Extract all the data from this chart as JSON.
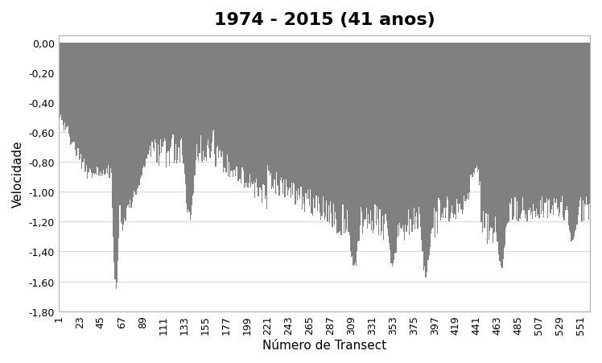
{
  "title": "1974 - 2015 (41 anos)",
  "xlabel": "Número de Transect",
  "ylabel": "Velocidade",
  "ylim": [
    -1.8,
    0.05
  ],
  "yticks": [
    0.0,
    -0.2,
    -0.4,
    -0.6,
    -0.8,
    -1.0,
    -1.2,
    -1.4,
    -1.6,
    -1.8
  ],
  "xtick_labels": [
    "1",
    "23",
    "45",
    "67",
    "89",
    "111",
    "133",
    "155",
    "177",
    "199",
    "221",
    "243",
    "265",
    "287",
    "309",
    "331",
    "353",
    "375",
    "397",
    "419",
    "441",
    "463",
    "485",
    "507",
    "529",
    "551"
  ],
  "bar_color": "#808080",
  "background_color": "#ffffff",
  "grid_color": "#d9d9d9",
  "title_fontsize": 16,
  "axis_fontsize": 11,
  "tick_fontsize": 9,
  "n_transects": 560
}
